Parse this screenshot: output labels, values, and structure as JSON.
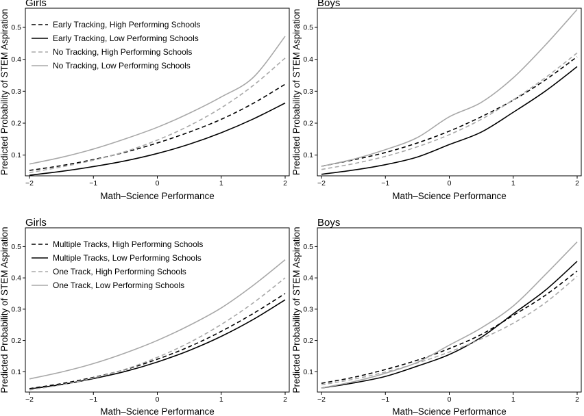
{
  "chart_data": [
    {
      "type": "line",
      "title": "Girls",
      "xlabel": "Math–Science Performance",
      "ylabel": "Predicted Probability of STEM Aspiration",
      "x": [
        -2,
        -1.5,
        -1,
        -0.5,
        0,
        0.5,
        1,
        1.5,
        2
      ],
      "xticks": [
        "−2",
        "−1",
        "0",
        "1",
        "2"
      ],
      "yticks": [
        "0.1",
        "0.2",
        "0.3",
        "0.4",
        "0.5"
      ],
      "xlim": [
        -2,
        2
      ],
      "ylim": [
        0.035,
        0.56
      ],
      "legend": "top-left",
      "series": [
        {
          "name": "Early Tracking, High Performing Schools",
          "color": "#000000",
          "dash": true,
          "values": [
            0.052,
            0.067,
            0.086,
            0.109,
            0.138,
            0.172,
            0.212,
            0.262,
            0.322
          ]
        },
        {
          "name": "Early Tracking, Low Performing Schools",
          "color": "#000000",
          "dash": false,
          "values": [
            0.037,
            0.049,
            0.064,
            0.082,
            0.105,
            0.134,
            0.17,
            0.213,
            0.263
          ]
        },
        {
          "name": "No Tracking, High Performing Schools",
          "color": "#a8a8a8",
          "dash": true,
          "values": [
            0.045,
            0.063,
            0.084,
            0.111,
            0.147,
            0.192,
            0.248,
            0.318,
            0.404
          ]
        },
        {
          "name": "No Tracking, Low Performing Schools",
          "color": "#a8a8a8",
          "dash": false,
          "values": [
            0.072,
            0.093,
            0.119,
            0.151,
            0.187,
            0.231,
            0.282,
            0.343,
            0.472
          ]
        }
      ]
    },
    {
      "type": "line",
      "title": "Boys",
      "xlabel": "Math–Science Performance",
      "ylabel": "Predicted Probability of STEM Aspiration",
      "x": [
        -2,
        -1.5,
        -1,
        -0.5,
        0,
        0.5,
        1,
        1.5,
        2
      ],
      "xticks": [
        "−2",
        "−1",
        "0",
        "1",
        "2"
      ],
      "yticks": [
        "0.1",
        "0.2",
        "0.3",
        "0.4",
        "0.5"
      ],
      "xlim": [
        -2,
        2
      ],
      "ylim": [
        0.035,
        0.56
      ],
      "series": [
        {
          "name": "Early Tracking, High Performing Schools",
          "color": "#000000",
          "dash": true,
          "values": [
            0.065,
            0.085,
            0.108,
            0.138,
            0.175,
            0.22,
            0.272,
            0.335,
            0.408
          ]
        },
        {
          "name": "Early Tracking, Low Performing Schools",
          "color": "#000000",
          "dash": false,
          "values": [
            0.04,
            0.053,
            0.07,
            0.094,
            0.133,
            0.172,
            0.234,
            0.3,
            0.377
          ]
        },
        {
          "name": "No Tracking, High Performing Schools",
          "color": "#a8a8a8",
          "dash": true,
          "values": [
            0.055,
            0.073,
            0.096,
            0.126,
            0.164,
            0.212,
            0.273,
            0.342,
            0.42
          ]
        },
        {
          "name": "No Tracking, Low Performing Schools",
          "color": "#a8a8a8",
          "dash": false,
          "values": [
            0.065,
            0.087,
            0.117,
            0.155,
            0.22,
            0.265,
            0.342,
            0.444,
            0.556
          ]
        }
      ]
    },
    {
      "type": "line",
      "title": "Girls",
      "xlabel": "Math–Science Performance",
      "ylabel": "Predicted Probability of STEM Aspiration",
      "x": [
        -2,
        -1.5,
        -1,
        -0.5,
        0,
        0.5,
        1,
        1.5,
        2
      ],
      "xticks": [
        "−2",
        "−1",
        "0",
        "1",
        "2"
      ],
      "yticks": [
        "0.1",
        "0.2",
        "0.3",
        "0.4",
        "0.5"
      ],
      "xlim": [
        -2,
        2
      ],
      "ylim": [
        0.035,
        0.56
      ],
      "legend": "top-left",
      "series": [
        {
          "name": "Multiple Tracks, High Performing Schools",
          "color": "#000000",
          "dash": true,
          "values": [
            0.046,
            0.062,
            0.082,
            0.107,
            0.14,
            0.18,
            0.229,
            0.286,
            0.35
          ]
        },
        {
          "name": "Multiple Tracks, Low Performing Schools",
          "color": "#000000",
          "dash": false,
          "values": [
            0.045,
            0.059,
            0.078,
            0.101,
            0.131,
            0.168,
            0.213,
            0.267,
            0.33
          ]
        },
        {
          "name": "One Track, High Performing Schools",
          "color": "#a8a8a8",
          "dash": true,
          "values": [
            0.042,
            0.058,
            0.08,
            0.108,
            0.146,
            0.193,
            0.251,
            0.32,
            0.4
          ]
        },
        {
          "name": "One Track, Low Performing Schools",
          "color": "#a8a8a8",
          "dash": false,
          "values": [
            0.077,
            0.099,
            0.126,
            0.16,
            0.2,
            0.248,
            0.304,
            0.376,
            0.458
          ]
        }
      ]
    },
    {
      "type": "line",
      "title": "Boys",
      "xlabel": "Math–Science Performance",
      "ylabel": "Predicted Probability of STEM Aspiration",
      "x": [
        -2,
        -1.5,
        -1,
        -0.5,
        0,
        0.5,
        1,
        1.5,
        2
      ],
      "xticks": [
        "−2",
        "−1",
        "0",
        "1",
        "2"
      ],
      "yticks": [
        "0.1",
        "0.2",
        "0.3",
        "0.4",
        "0.5"
      ],
      "xlim": [
        -2,
        2
      ],
      "ylim": [
        0.035,
        0.56
      ],
      "series": [
        {
          "name": "Multiple Tracks, High Performing Schools",
          "color": "#000000",
          "dash": true,
          "values": [
            0.063,
            0.082,
            0.107,
            0.137,
            0.174,
            0.219,
            0.28,
            0.344,
            0.422
          ]
        },
        {
          "name": "Multiple Tracks, Low Performing Schools",
          "color": "#000000",
          "dash": false,
          "values": [
            0.048,
            0.064,
            0.085,
            0.118,
            0.155,
            0.21,
            0.285,
            0.36,
            0.453
          ]
        },
        {
          "name": "One Track, High Performing Schools",
          "color": "#a8a8a8",
          "dash": true,
          "values": [
            0.058,
            0.076,
            0.099,
            0.128,
            0.163,
            0.205,
            0.255,
            0.32,
            0.405
          ]
        },
        {
          "name": "One Track, Low Performing Schools",
          "color": "#a8a8a8",
          "dash": false,
          "values": [
            0.048,
            0.068,
            0.095,
            0.13,
            0.185,
            0.24,
            0.31,
            0.41,
            0.515
          ]
        }
      ]
    }
  ]
}
